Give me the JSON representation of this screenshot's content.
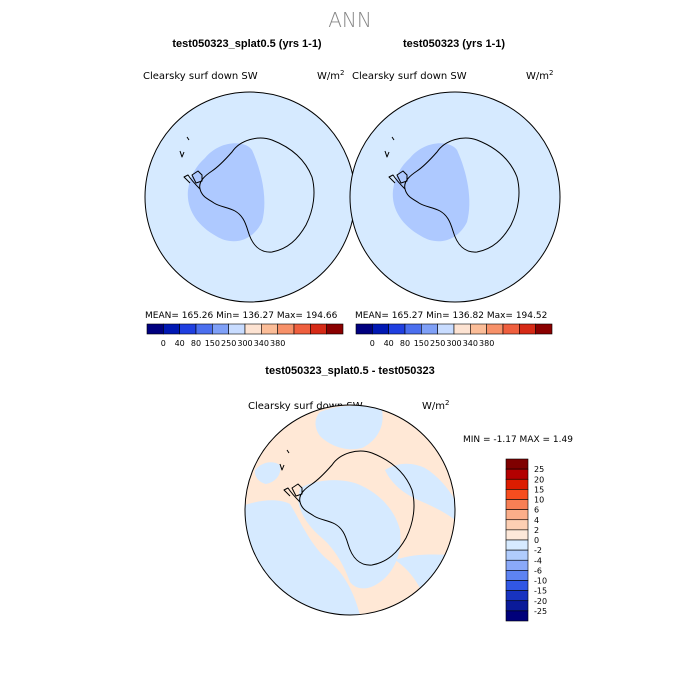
{
  "figure": {
    "season": "ANN"
  },
  "colors": {
    "base_fill": "#d6eaff",
    "inner_fill": "#aec9ff",
    "diff_pos_fill": "#ffe8d6",
    "diff_zero_fill": "#d6eaff"
  },
  "panels": [
    {
      "case_title": "test050323_splat0.5 (yrs 1-1)",
      "variable": "Clearsky surf down SW",
      "units_base": "W/m",
      "units_exp": "2",
      "stats_text": "MEAN= 165.26  Min= 136.27  Max= 194.66"
    },
    {
      "case_title": "test050323 (yrs 1-1)",
      "variable": "Clearsky surf down SW",
      "units_base": "W/m",
      "units_exp": "2",
      "stats_text": "MEAN= 165.27  Min= 136.82  Max= 194.52"
    }
  ],
  "shared_colorbar": {
    "colors": [
      "#00007f",
      "#0018b3",
      "#1f3fe0",
      "#4b6fef",
      "#7fa0f7",
      "#c8dcff",
      "#fde3d2",
      "#fbbd98",
      "#f79169",
      "#ef5f3e",
      "#d62a16",
      "#8a0000"
    ],
    "tick_labels": [
      "0",
      "40",
      "80",
      "150",
      "250",
      "300",
      "340",
      "380"
    ]
  },
  "diff_panel": {
    "title": "test050323_splat0.5 - test050323",
    "variable": "Clearsky surf down SW",
    "units_base": "W/m",
    "units_exp": "2",
    "min_max_text": "MIN =   -1.17 MAX =    1.49"
  },
  "diff_colorbar": {
    "colors": [
      "#7f0000",
      "#b30000",
      "#dc1c00",
      "#f74d1f",
      "#f77f55",
      "#fbae8a",
      "#fdcfb3",
      "#fde8d9",
      "#d6eaff",
      "#b0ccfd",
      "#8aa9f9",
      "#5d83f2",
      "#3157e4",
      "#1833c0",
      "#0a1a99",
      "#00007a"
    ],
    "tick_labels": [
      "25",
      "20",
      "15",
      "10",
      "6",
      "4",
      "2",
      "0",
      "-2",
      "-4",
      "-6",
      "-10",
      "-15",
      "-20",
      "-25"
    ]
  }
}
